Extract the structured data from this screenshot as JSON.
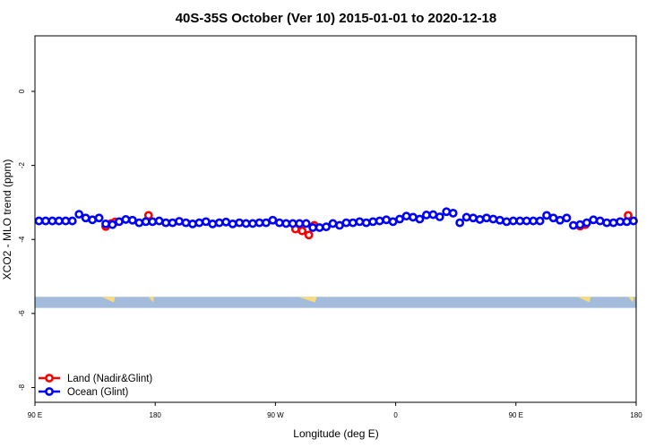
{
  "chart_data": {
    "type": "scatter",
    "title": "40S-35S October (Ver 10)   2015-01-01 to 2020-12-18",
    "xlabel": "Longitude (deg E)",
    "ylabel": "XCO2 - MLO trend (ppm)",
    "x_ticks": [
      {
        "value": 90,
        "label": "90 E"
      },
      {
        "value": 180,
        "label": "180"
      },
      {
        "value": 270,
        "label": "90 W"
      },
      {
        "value": 360,
        "label": "0"
      },
      {
        "value": 450,
        "label": "90 E"
      },
      {
        "value": 540,
        "label": "180"
      }
    ],
    "y_ticks": [
      {
        "value": 0,
        "label": "0"
      },
      {
        "value": -2,
        "label": "-2"
      },
      {
        "value": -4,
        "label": "-4"
      },
      {
        "value": -6,
        "label": "-6"
      },
      {
        "value": -8,
        "label": "-8"
      }
    ],
    "xlim": [
      90,
      540
    ],
    "ylim": [
      -8.4,
      1.5
    ],
    "map_strip": {
      "y_top": -5.55,
      "y_bottom": -5.85,
      "ocean_color": "#a4bcdc",
      "land_color": "#f8dc7c",
      "land_segments": [
        {
          "lon": 145,
          "half_width": 5,
          "drop": 0.22
        },
        {
          "lon": 177,
          "half_width": 2,
          "drop": 0.22
        },
        {
          "lon": 294,
          "half_width": 7,
          "drop": 0.28
        },
        {
          "lon": 501,
          "half_width": 5,
          "drop": 0.2
        },
        {
          "lon": 536,
          "half_width": 2,
          "drop": 0.2
        }
      ]
    },
    "series": [
      {
        "name": "Land (Nadir&Glint)",
        "color": "#ff0000",
        "points": [
          [
            143,
            -3.65
          ],
          [
            147,
            -3.57
          ],
          [
            150,
            -3.53
          ],
          [
            175,
            -3.35
          ],
          [
            285,
            -3.72
          ],
          [
            290,
            -3.77
          ],
          [
            295,
            -3.88
          ],
          [
            299,
            -3.62
          ],
          [
            498,
            -3.64
          ],
          [
            502,
            -3.6
          ],
          [
            534,
            -3.35
          ]
        ]
      },
      {
        "name": "Ocean (Glint)",
        "color": "#0000ff",
        "points": [
          [
            93,
            -3.5
          ],
          [
            98,
            -3.5
          ],
          [
            103,
            -3.5
          ],
          [
            108,
            -3.5
          ],
          [
            113,
            -3.5
          ],
          [
            118,
            -3.5
          ],
          [
            123,
            -3.32
          ],
          [
            128,
            -3.42
          ],
          [
            133,
            -3.47
          ],
          [
            138,
            -3.42
          ],
          [
            143,
            -3.58
          ],
          [
            148,
            -3.6
          ],
          [
            153,
            -3.52
          ],
          [
            158,
            -3.46
          ],
          [
            163,
            -3.48
          ],
          [
            168,
            -3.55
          ],
          [
            173,
            -3.52
          ],
          [
            178,
            -3.52
          ],
          [
            183,
            -3.5
          ],
          [
            188,
            -3.55
          ],
          [
            193,
            -3.55
          ],
          [
            198,
            -3.51
          ],
          [
            203,
            -3.55
          ],
          [
            208,
            -3.58
          ],
          [
            213,
            -3.55
          ],
          [
            218,
            -3.52
          ],
          [
            223,
            -3.58
          ],
          [
            228,
            -3.55
          ],
          [
            233,
            -3.53
          ],
          [
            238,
            -3.58
          ],
          [
            243,
            -3.55
          ],
          [
            248,
            -3.57
          ],
          [
            253,
            -3.57
          ],
          [
            258,
            -3.55
          ],
          [
            263,
            -3.55
          ],
          [
            268,
            -3.48
          ],
          [
            273,
            -3.55
          ],
          [
            278,
            -3.57
          ],
          [
            283,
            -3.57
          ],
          [
            288,
            -3.57
          ],
          [
            293,
            -3.57
          ],
          [
            298,
            -3.68
          ],
          [
            303,
            -3.68
          ],
          [
            308,
            -3.66
          ],
          [
            313,
            -3.57
          ],
          [
            318,
            -3.62
          ],
          [
            323,
            -3.55
          ],
          [
            328,
            -3.55
          ],
          [
            333,
            -3.52
          ],
          [
            338,
            -3.55
          ],
          [
            343,
            -3.52
          ],
          [
            348,
            -3.5
          ],
          [
            353,
            -3.47
          ],
          [
            358,
            -3.52
          ],
          [
            363,
            -3.45
          ],
          [
            368,
            -3.37
          ],
          [
            373,
            -3.4
          ],
          [
            378,
            -3.45
          ],
          [
            383,
            -3.34
          ],
          [
            388,
            -3.33
          ],
          [
            393,
            -3.39
          ],
          [
            398,
            -3.25
          ],
          [
            403,
            -3.29
          ],
          [
            408,
            -3.55
          ],
          [
            413,
            -3.4
          ],
          [
            418,
            -3.42
          ],
          [
            423,
            -3.46
          ],
          [
            428,
            -3.42
          ],
          [
            433,
            -3.45
          ],
          [
            438,
            -3.48
          ],
          [
            443,
            -3.52
          ],
          [
            448,
            -3.5
          ],
          [
            453,
            -3.5
          ],
          [
            458,
            -3.5
          ],
          [
            463,
            -3.5
          ],
          [
            468,
            -3.5
          ],
          [
            473,
            -3.35
          ],
          [
            478,
            -3.42
          ],
          [
            483,
            -3.48
          ],
          [
            488,
            -3.42
          ],
          [
            493,
            -3.62
          ],
          [
            498,
            -3.6
          ],
          [
            503,
            -3.55
          ],
          [
            508,
            -3.47
          ],
          [
            513,
            -3.5
          ],
          [
            518,
            -3.55
          ],
          [
            523,
            -3.55
          ],
          [
            528,
            -3.52
          ],
          [
            533,
            -3.52
          ],
          [
            538,
            -3.5
          ]
        ]
      }
    ],
    "grid": false,
    "legend_position": "bottom-left"
  }
}
